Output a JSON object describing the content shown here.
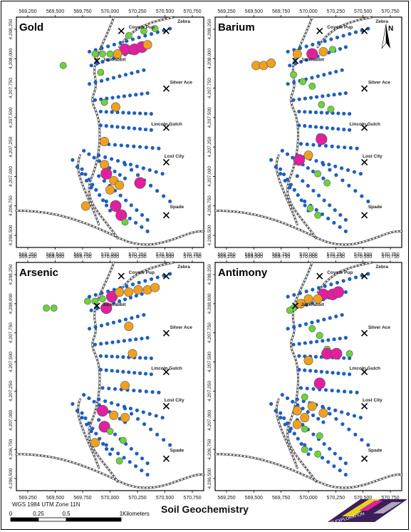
{
  "title": "Soil Geochemistry",
  "projection": "WGS 1984 UTM Zone 11N",
  "scale_bar": {
    "ticks": [
      "0",
      "0.25",
      "0.5",
      "1"
    ],
    "unit": "Kilometers"
  },
  "north_arrow_label": "N",
  "logo_text": "VB EXPLORATION",
  "panels": [
    {
      "element": "Gold"
    },
    {
      "element": "Barium"
    },
    {
      "element": "Arsenic"
    },
    {
      "element": "Antimony"
    }
  ],
  "x_ticks": [
    "569,250",
    "569,500",
    "569,750",
    "570,000",
    "570,250",
    "570,500",
    "570,750"
  ],
  "y_ticks": [
    "4,206,500",
    "4,206,750",
    "4,207,000",
    "4,207,250",
    "4,207,500",
    "4,207,750",
    "4,208,000",
    "4,208,250"
  ],
  "claims": [
    {
      "name": "Coyote Pup"
    },
    {
      "name": "Zebra"
    },
    {
      "name": "Jackrabbit"
    },
    {
      "name": "Silver Ace"
    },
    {
      "name": "Lincoln Gulch"
    },
    {
      "name": "Lost City"
    },
    {
      "name": "Spade"
    }
  ],
  "colors": {
    "low": "#1f5fbf",
    "moderate": "#6dd33c",
    "high": "#f0a020",
    "very_high": "#e0209f",
    "road": "#888888"
  }
}
